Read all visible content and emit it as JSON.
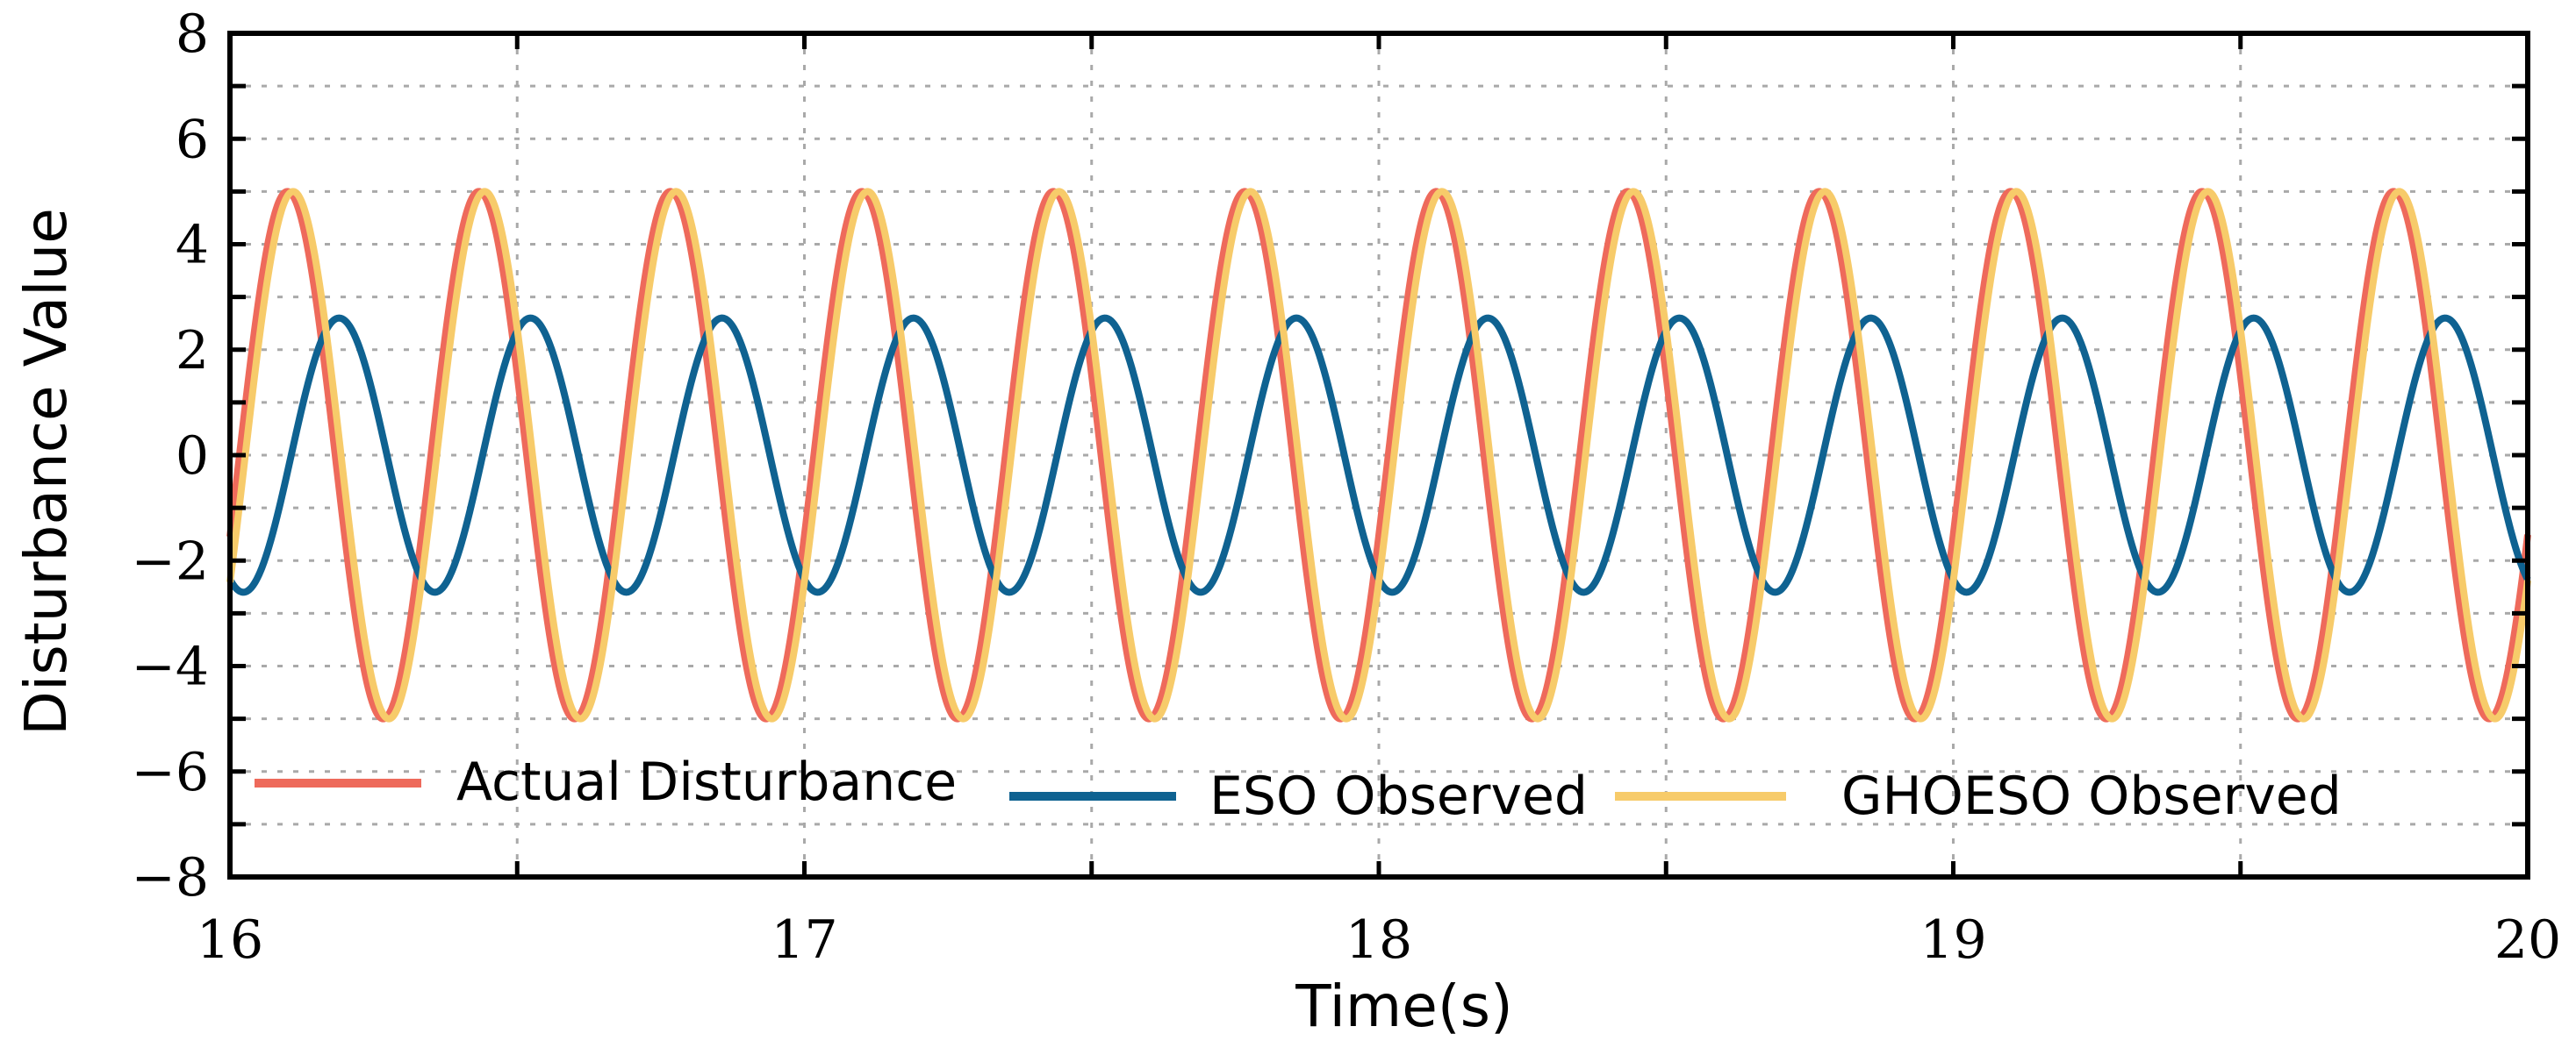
{
  "chart_data": {
    "type": "line",
    "title": "",
    "xlabel": "Time(s)",
    "ylabel": "Disturbance Value",
    "xlim": [
      16,
      20
    ],
    "ylim": [
      -8,
      8
    ],
    "xticks": [
      16,
      17,
      18,
      19,
      20
    ],
    "yticks": [
      -8,
      -6,
      -4,
      -2,
      0,
      2,
      4,
      6,
      8
    ],
    "grid": true,
    "legend_position": "bottom, horizontal",
    "series": [
      {
        "name": "Actual Disturbance",
        "color": "#ee6a5b",
        "amplitude": 5.0,
        "period": 0.3333,
        "peak_times": [
          16.1,
          16.43,
          16.76,
          17.1,
          17.43,
          17.76,
          18.1,
          18.43,
          18.76,
          19.1,
          19.43,
          19.76
        ]
      },
      {
        "name": "ESO Observed",
        "color": "#0f6291",
        "amplitude": 2.6,
        "period": 0.3333,
        "peak_times": [
          16.19,
          16.52,
          16.85,
          17.19,
          17.52,
          17.85,
          18.19,
          18.52,
          18.85,
          19.19,
          19.52,
          19.85
        ]
      },
      {
        "name": "GHOESO Observed",
        "color": "#f7cb6a",
        "amplitude": 5.0,
        "period": 0.3333,
        "peak_times": [
          16.11,
          16.44,
          16.77,
          17.11,
          17.44,
          17.77,
          18.11,
          18.44,
          18.77,
          19.11,
          19.44,
          19.77
        ]
      }
    ]
  }
}
